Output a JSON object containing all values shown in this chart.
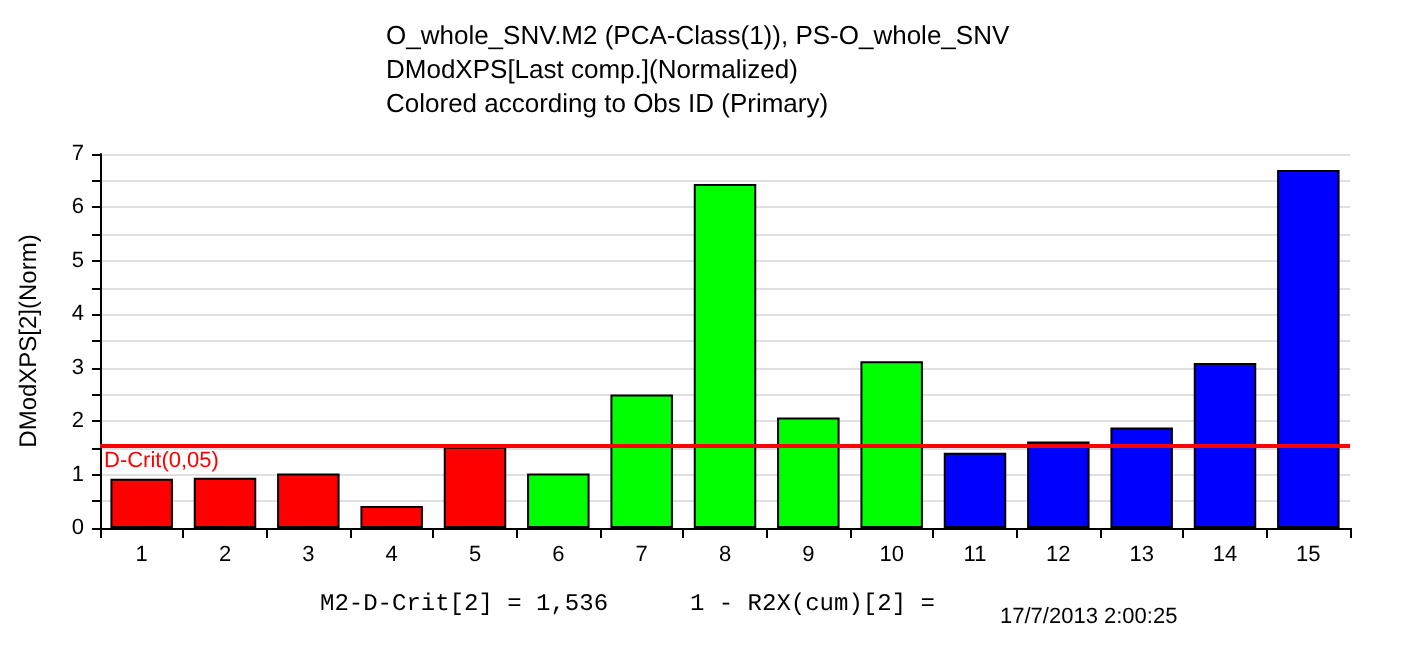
{
  "chart_data": {
    "type": "bar",
    "title": "O_whole_SNV.M2 (PCA-Class(1)), PS-O_whole_SNV",
    "subtitle": "DModXPS[Last comp.](Normalized)\nColored according to Obs ID (Primary)",
    "ylabel": "DModXPS[2](Norm)",
    "categories": [
      "1",
      "2",
      "3",
      "4",
      "5",
      "6",
      "7",
      "8",
      "9",
      "10",
      "11",
      "12",
      "13",
      "14",
      "15"
    ],
    "values": [
      0.92,
      0.94,
      1.02,
      0.41,
      1.52,
      1.02,
      2.5,
      6.44,
      2.07,
      3.12,
      1.41,
      1.62,
      1.88,
      3.09,
      6.7
    ],
    "colors": [
      "#ff0000",
      "#ff0000",
      "#ff0000",
      "#ff0000",
      "#ff0000",
      "#00ff00",
      "#00ff00",
      "#00ff00",
      "#00ff00",
      "#00ff00",
      "#0000ff",
      "#0000ff",
      "#0000ff",
      "#0000ff",
      "#0000ff"
    ],
    "ylim": [
      0,
      7
    ],
    "yticks": [
      0,
      {
        "value": 0.5,
        "label": null
      },
      1,
      {
        "value": 1.5,
        "label": null
      },
      2,
      {
        "value": 2.5,
        "label": null
      },
      3,
      {
        "value": 3.5,
        "label": null
      },
      4,
      {
        "value": 4.5,
        "label": null
      },
      5,
      {
        "value": 5.5,
        "label": null
      },
      6,
      {
        "value": 6.5,
        "label": null
      },
      7
    ],
    "grid": "y",
    "ref_lines": [
      {
        "axis": "y",
        "value": 1.536,
        "label": "D-Crit(0,05)",
        "color": "#ff0000"
      }
    ],
    "annotations": [
      "M2-D-Crit[2] = 1,536",
      "1 - R2X(cum)[2] =",
      "17/7/2013 2:00:25"
    ]
  }
}
